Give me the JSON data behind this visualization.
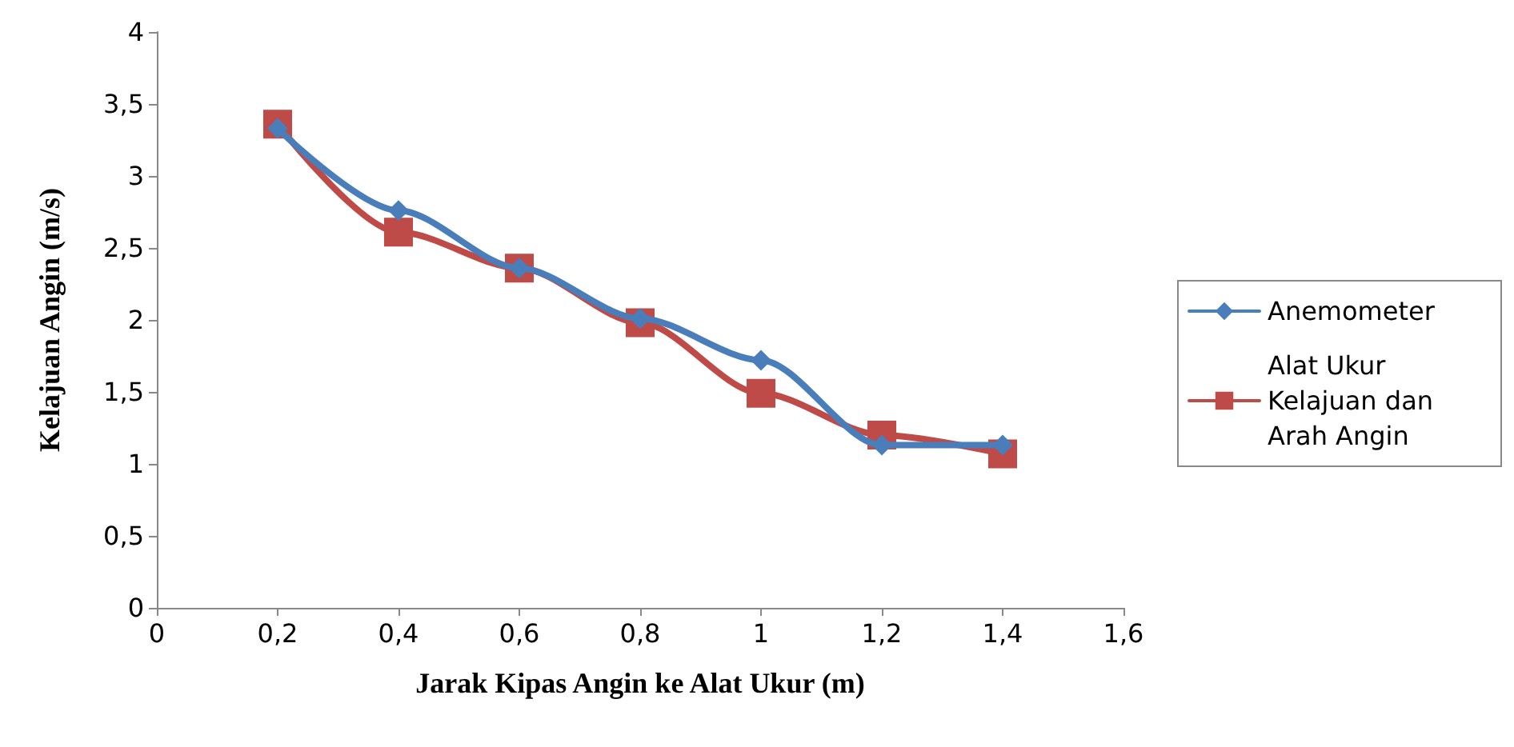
{
  "chart_data": {
    "type": "line",
    "xlabel": "Jarak Kipas Angin ke Alat Ukur (m)",
    "ylabel": "Kelajuan Angin (m/s)",
    "x": [
      0.2,
      0.4,
      0.6,
      0.8,
      1.0,
      1.2,
      1.4
    ],
    "series": [
      {
        "name": "Anemometer",
        "color": "#4a7ebb",
        "marker": "diamond",
        "values": [
          3.33,
          2.76,
          2.36,
          2.01,
          1.72,
          1.13,
          1.13
        ]
      },
      {
        "name": "Alat Ukur Kelajuan dan Arah Angin",
        "color": "#be4b48",
        "marker": "square",
        "values": [
          3.36,
          2.61,
          2.36,
          1.98,
          1.49,
          1.2,
          1.07
        ]
      }
    ],
    "xlim": [
      0,
      1.6
    ],
    "xticks": [
      0,
      {
        "value": 0.2,
        "label": "0,2"
      },
      {
        "value": 0.4,
        "label": "0,4"
      },
      {
        "value": 0.6,
        "label": "0,6"
      },
      {
        "value": 0.8,
        "label": "0,8"
      },
      1,
      {
        "value": 1.2,
        "label": "1,2"
      },
      {
        "value": 1.4,
        "label": "1,4"
      },
      {
        "value": 1.6,
        "label": "1,6"
      }
    ],
    "ylim": [
      0,
      4
    ],
    "yticks": [
      0,
      {
        "value": 0.5,
        "label": "0,5"
      },
      1,
      {
        "value": 1.5,
        "label": "1,5"
      },
      2,
      {
        "value": 2.5,
        "label": "2,5"
      },
      3,
      {
        "value": 3.5,
        "label": "3,5"
      },
      4
    ],
    "legend": "right"
  }
}
